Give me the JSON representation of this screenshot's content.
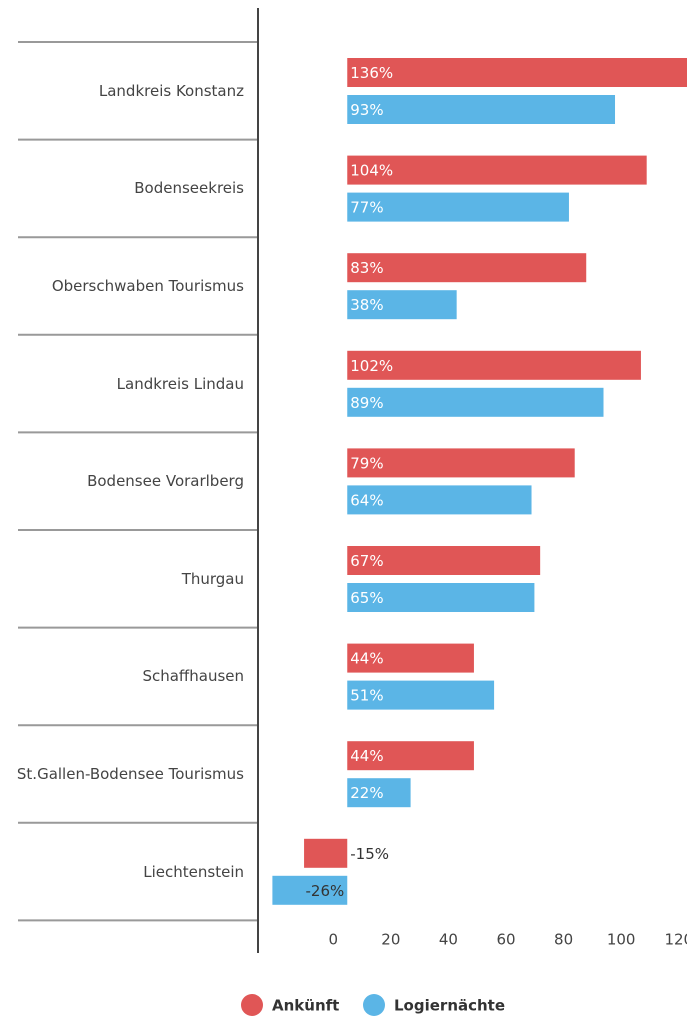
{
  "chart_data": {
    "type": "bar",
    "orientation": "horizontal",
    "categories": [
      "Landkreis Konstanz",
      "Bodenseekreis",
      "Oberschwaben Tourismus",
      "Landkreis Lindau",
      "Bodensee Vorarlberg",
      "Thurgau",
      "Schaffhausen",
      "St.Gallen-Bodensee Tourismus",
      "Liechtenstein"
    ],
    "series": [
      {
        "name": "Ankünft",
        "color": "#e05656",
        "values": [
          136,
          104,
          83,
          102,
          79,
          67,
          44,
          44,
          -15
        ],
        "value_labels": [
          "136%",
          "104%",
          "83%",
          "102%",
          "79%",
          "67%",
          "44%",
          "44%",
          "-15%"
        ]
      },
      {
        "name": "Logiernächte",
        "color": "#5bb5e6",
        "values": [
          93,
          77,
          38,
          89,
          64,
          65,
          51,
          22,
          -26
        ],
        "value_labels": [
          "93%",
          "77%",
          "38%",
          "89%",
          "64%",
          "65%",
          "51%",
          "22%",
          "-26%"
        ]
      }
    ],
    "xlim": [
      -31,
      118
    ],
    "xticks": [
      0,
      20,
      40,
      60,
      80,
      100,
      120
    ],
    "legend": "bottom"
  }
}
